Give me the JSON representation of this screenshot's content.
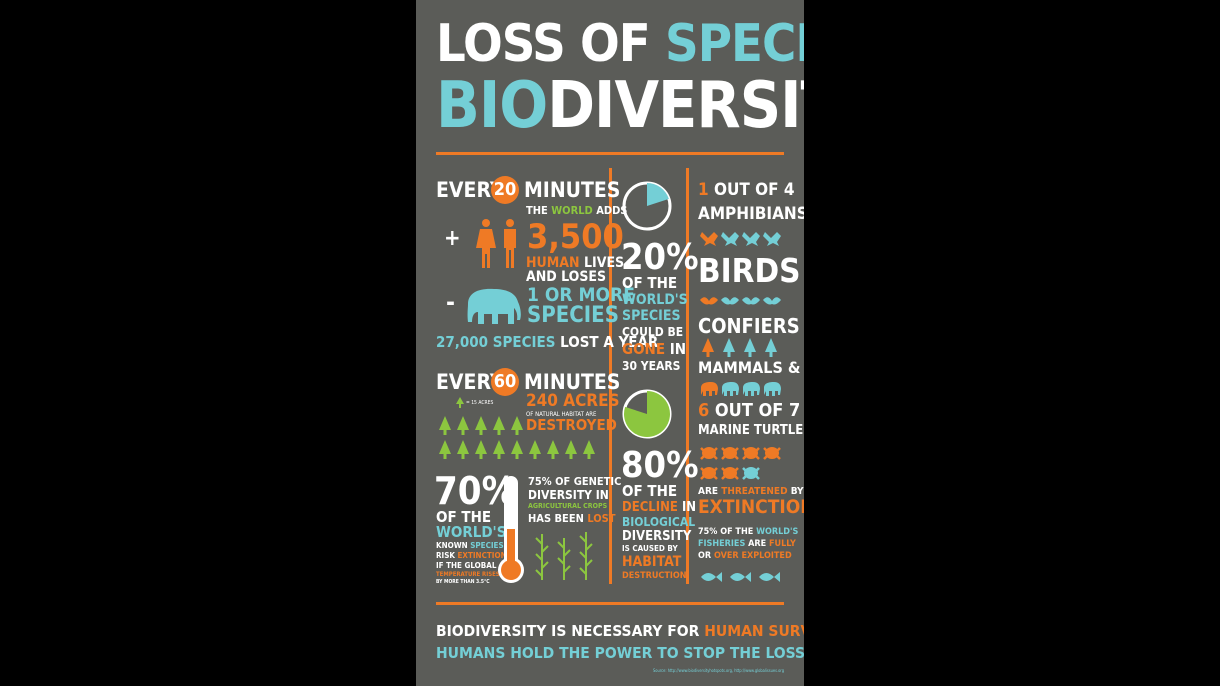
{
  "colors": {
    "bg": "#5b5c58",
    "orange": "#ef7a25",
    "blue": "#74cfd6",
    "green": "#8cc63f",
    "white": "#ffffff"
  },
  "title": {
    "line1_a": "LOSS OF ",
    "line1_b": "SPECIES",
    "line2_a": "BIO",
    "line2_b": "DIVERSITY"
  },
  "left": {
    "every_a": "EVERY",
    "twenty": "20",
    "minutes_a": "MINUTES",
    "the": "THE",
    "world_a": "WORLD",
    "adds": "ADDS",
    "plus": "+",
    "count": "3,500",
    "human": "HUMAN",
    "lives": "LIVES",
    "and_loses": "AND LOSES",
    "minus": "-",
    "one_or_more": "1 OR MORE",
    "species": "SPECIES",
    "lost_a": "27,000 SPECIES",
    "lost_b": "LOST A YEAR",
    "every_b": "EVERY",
    "sixty": "60",
    "minutes_b": "MINUTES",
    "acres": "240 ACRES",
    "natural": "OF NATURAL HABITAT ARE",
    "destroyed": "DESTROYED",
    "tree_key": "= 15 ACRES",
    "pct70": "70%",
    "of_the": "OF THE",
    "worlds": "WORLD'S",
    "known": "KNOWN",
    "species_b": "SPECIES",
    "risk": "RISK",
    "extinction": "EXTINCTION",
    "if_global": "IF THE GLOBAL",
    "temps": "TEMPERATURE RISES",
    "by_more": "BY MORE THAN 3.5°C",
    "genetic": "75% OF GENETIC",
    "diversity_in": "DIVERSITY IN",
    "agri": "AGRICULTURAL CROPS",
    "has_been": "HAS BEEN",
    "lost": "LOST"
  },
  "middle": {
    "pct20": "20%",
    "of_the": "OF THE",
    "worlds": "WORLD'S",
    "species": "SPECIES",
    "could_be": "COULD BE",
    "gone": "GONE",
    "in": "IN",
    "years": "30 YEARS",
    "pct80": "80%",
    "of_the_b": "OF THE",
    "decline": "DECLINE",
    "in_b": "IN",
    "biological": "BIOLOGICAL",
    "diversity": "DIVERSITY",
    "caused": "IS CAUSED BY",
    "habitat": "HABITAT",
    "destruction": "DESTRUCTION",
    "pie_fraction_20": 0.2,
    "pie_fraction_80": 0.8
  },
  "right": {
    "one_out": "1",
    "out_of_4": "OUT OF 4",
    "amphibians": "AMPHIBIANS",
    "birds": "BIRDS",
    "confiers": "CONFIERS",
    "mammals": "MAMMALS &",
    "six": "6",
    "out_of_7": "OUT OF 7",
    "marine": "MARINE TURTLES",
    "are": "ARE",
    "threatened": "THREATENED",
    "by": "BY",
    "extinction": "EXTINCTION",
    "fish_a": "75% OF THE",
    "fish_b": "WORLD'S",
    "fisheries": "FISHERIES",
    "are_b": "ARE",
    "fully": "FULLY",
    "or": "OR",
    "over": "OVER EXPLOITED"
  },
  "footer": {
    "line1_a": "BIODIVERSITY IS NECESSARY FOR ",
    "line1_b": "HUMAN SURVIVAL",
    "line2": "HUMANS HOLD THE POWER TO STOP THE LOSS",
    "source": "Source: http://www.biodiversityhotspots.org, http://www.globalissues.org"
  }
}
